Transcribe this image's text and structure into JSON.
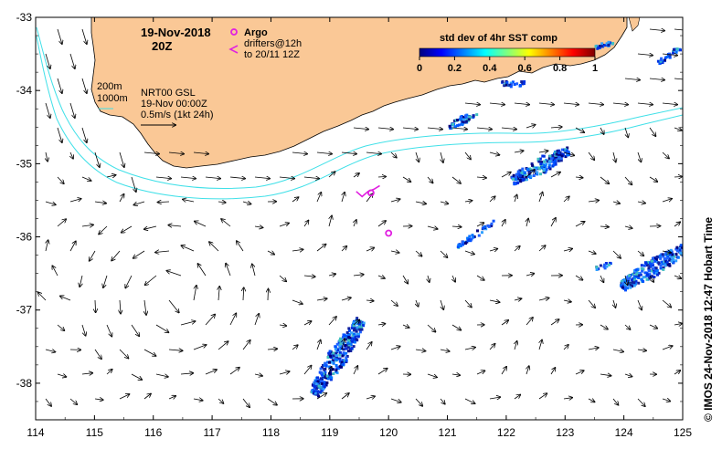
{
  "map": {
    "date_title": "19-Nov-2018",
    "time_title": "20Z",
    "argo_label": "Argo",
    "drifter_label_line1": "drifters@12h",
    "drifter_label_line2": "to 20/11 12Z",
    "isobath_200": "200m",
    "isobath_1000": "1000m",
    "product_line1": "NRT00 GSL",
    "product_line2": "19-Nov 00:00Z",
    "scale_label": "0.5m/s (1kt 24h)",
    "colorbar_title": "std dev of 4hr SST comp",
    "colorbar_ticks": [
      "0",
      "0.2",
      "0.4",
      "0.6",
      "0.8",
      "1"
    ],
    "credit": "© IMOS 24-Nov-2018 12:47 Hobart Time",
    "x_ticks": [
      "114",
      "115",
      "116",
      "117",
      "118",
      "119",
      "120",
      "121",
      "122",
      "123",
      "124",
      "125"
    ],
    "y_ticks": [
      "-33",
      "-34",
      "-35",
      "-36",
      "-37",
      "-38"
    ]
  },
  "colors": {
    "land": "#FAC896",
    "isobath": "#40E0E8",
    "argo": "#E020E0",
    "vector": "#000000"
  },
  "chart_data": {
    "type": "map",
    "xlim": [
      114,
      125
    ],
    "ylim": [
      -38.5,
      -33
    ],
    "argo_floats": [
      [
        120.0,
        -35.95
      ],
      [
        119.7,
        -35.4
      ]
    ],
    "drifter_track": [
      [
        119.45,
        -35.38
      ],
      [
        119.55,
        -35.45
      ],
      [
        119.65,
        -35.38
      ],
      [
        119.75,
        -35.35
      ],
      [
        119.85,
        -35.3
      ]
    ],
    "colorbar_range": [
      0,
      1
    ]
  }
}
